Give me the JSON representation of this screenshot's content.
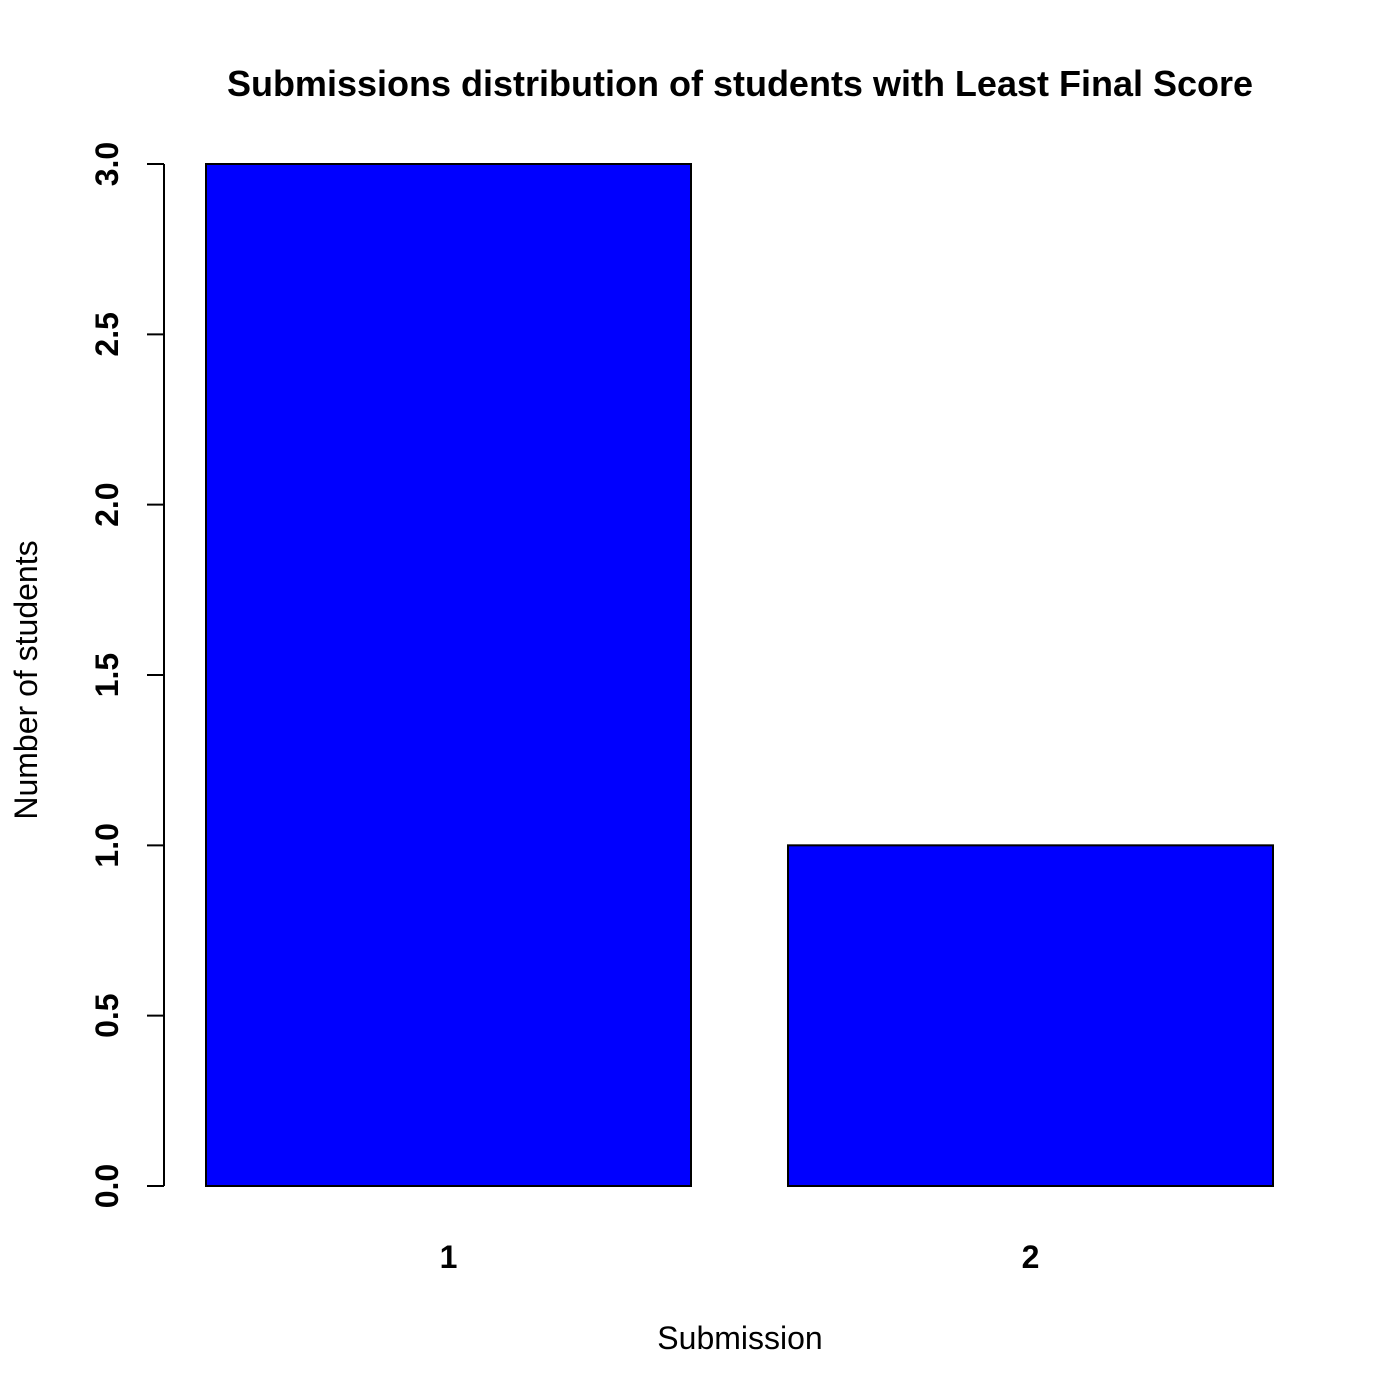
{
  "chart_data": {
    "type": "bar",
    "title": "Submissions distribution of students with Least Final Score",
    "xlabel": "Submission",
    "ylabel": "Number of students",
    "categories": [
      "1",
      "2"
    ],
    "values": [
      3,
      1
    ],
    "ylim": [
      0,
      3
    ],
    "yticks": [
      "0.0",
      "0.5",
      "1.0",
      "1.5",
      "2.0",
      "2.5",
      "3.0"
    ],
    "grid": false,
    "bar_color": "#0000ff"
  }
}
